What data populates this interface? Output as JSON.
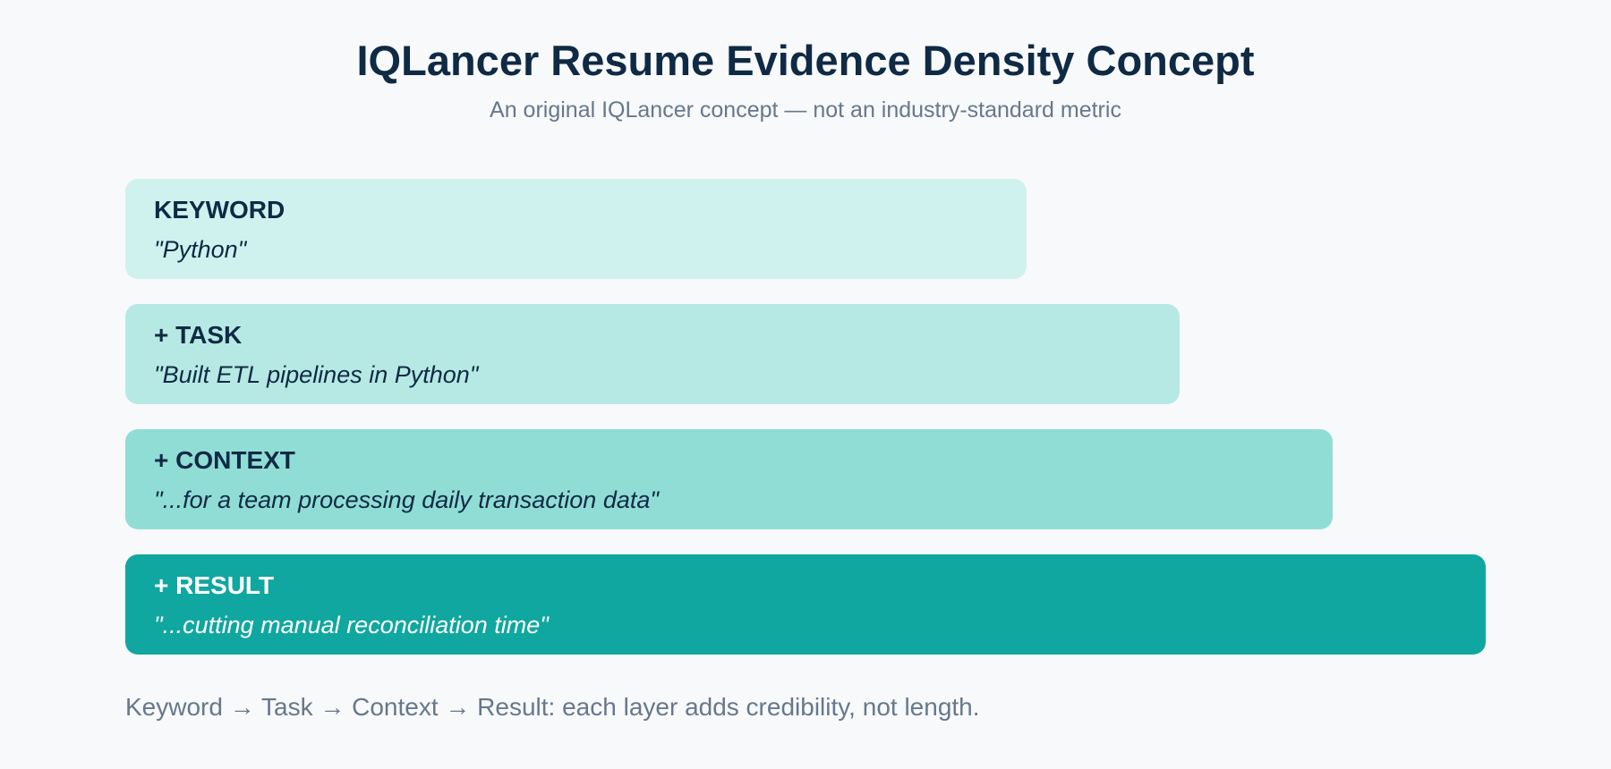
{
  "header": {
    "title": "IQLancer Resume Evidence Density Concept",
    "subtitle": "An original IQLancer concept — not an industry-standard metric"
  },
  "layers": [
    {
      "heading": "KEYWORD",
      "example": "\"Python\"",
      "background": "#d0f2ef",
      "text_color": "#0f2a44"
    },
    {
      "heading": "+ TASK",
      "example": "\"Built ETL pipelines in Python\"",
      "background": "#b6e9e4",
      "text_color": "#0f2a44"
    },
    {
      "heading": "+ CONTEXT",
      "example": "\"...for a team processing daily transaction data\"",
      "background": "#90ddd6",
      "text_color": "#0f2a44"
    },
    {
      "heading": "+ RESULT",
      "example": "\"...cutting manual reconciliation time\"",
      "background": "#10a7a0",
      "text_color": "#ffffff"
    }
  ],
  "footer": {
    "text": "Keyword → Task → Context → Result: each layer adds credibility, not length."
  }
}
